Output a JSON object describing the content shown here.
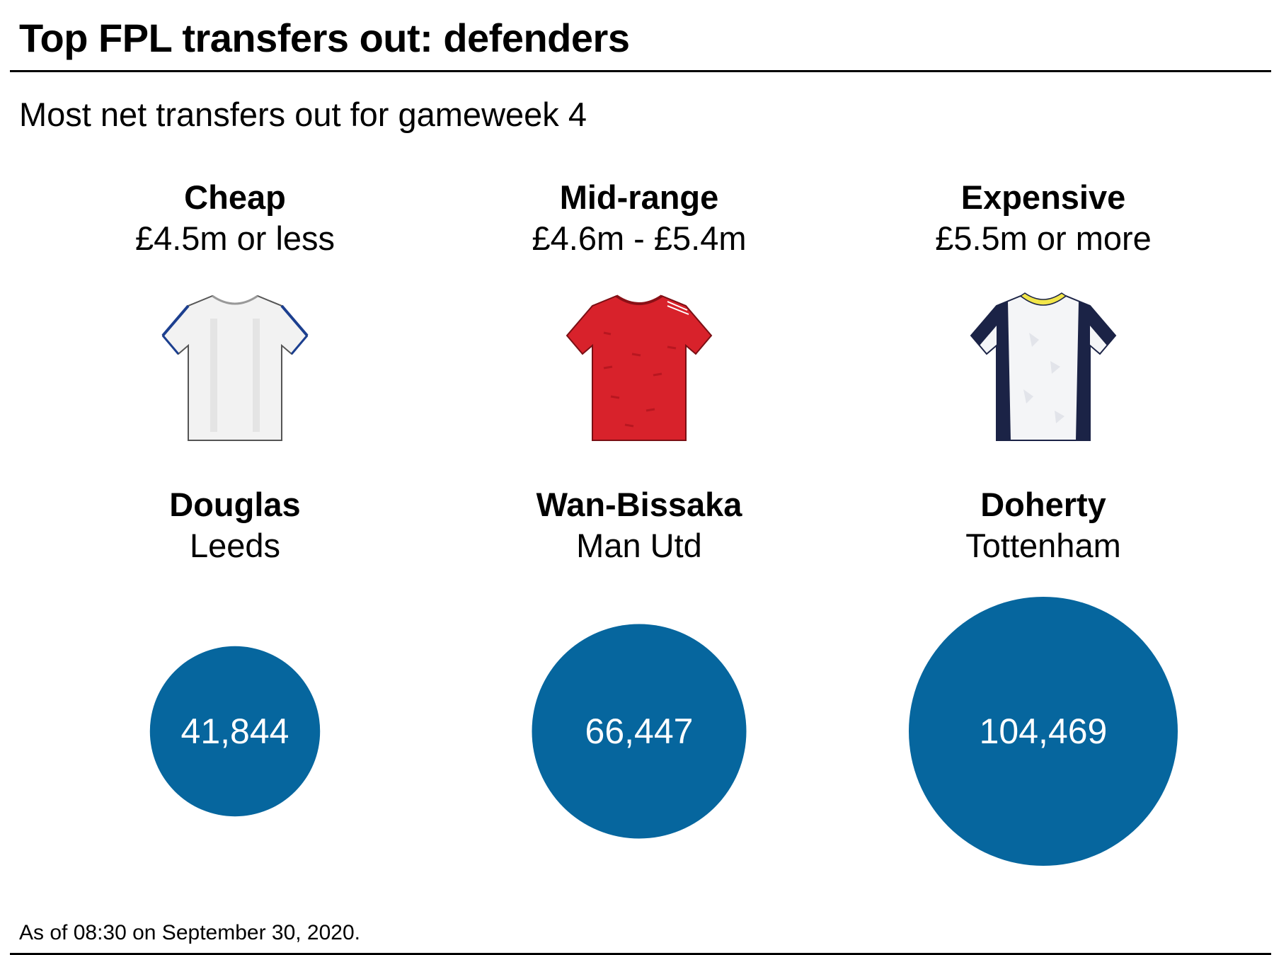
{
  "title": "Top FPL transfers out: defenders",
  "subtitle": "Most net transfers out for gameweek 4",
  "footnote": "As of 08:30 on September 30, 2020.",
  "colors": {
    "bubble": "#06669e",
    "bubble_text": "#ffffff",
    "leeds_shirt": "#f2f2f2",
    "leeds_trim": "#1c3f8f",
    "manutd_shirt": "#d8222b",
    "tottenham_shirt": "#f4f5f7",
    "tottenham_navy": "#1b2346",
    "tottenham_collar": "#f2e64a"
  },
  "columns": [
    {
      "tier": "Cheap",
      "range": "£4.5m or less",
      "shirt_icon": "leeds-shirt-icon",
      "player": "Douglas",
      "team": "Leeds",
      "value_label": "41,844"
    },
    {
      "tier": "Mid-range",
      "range": "£4.6m - £5.4m",
      "shirt_icon": "manutd-shirt-icon",
      "player": "Wan-Bissaka",
      "team": "Man Utd",
      "value_label": "66,447"
    },
    {
      "tier": "Expensive",
      "range": "£5.5m or more",
      "shirt_icon": "tottenham-shirt-icon",
      "player": "Doherty",
      "team": "Tottenham",
      "value_label": "104,469"
    }
  ],
  "chart_data": {
    "type": "bubble",
    "title": "Top FPL transfers out: defenders",
    "subtitle": "Most net transfers out for gameweek 4",
    "categories": [
      "Douglas",
      "Wan-Bissaka",
      "Doherty"
    ],
    "values": [
      41844,
      66447,
      104469
    ],
    "value_labels": [
      "41,844",
      "66,447",
      "104,469"
    ],
    "encoding": "circle area proportional to net transfers out"
  }
}
